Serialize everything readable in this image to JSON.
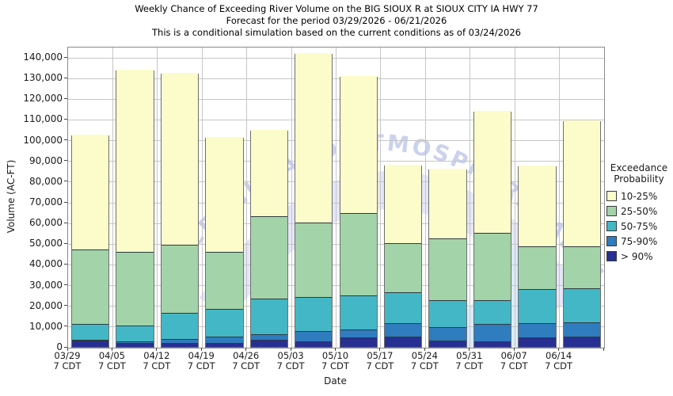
{
  "chart_data": {
    "type": "bar",
    "stacked": true,
    "title": "Weekly Chance of Exceeding River Volume on the BIG SIOUX R at SIOUX CITY IA HWY 77",
    "subtitle1": "Forecast for the period 03/29/2026 - 06/21/2026",
    "subtitle2": "This is a conditional simulation based on the current conditions as of 03/24/2026",
    "xlabel": "Date",
    "ylabel": "Volume (AC-FT)",
    "ylim": [
      0,
      145000
    ],
    "y_tick_step": 10000,
    "y_tick_labels": [
      "0",
      "10,000",
      "20,000",
      "30,000",
      "40,000",
      "50,000",
      "60,000",
      "70,000",
      "80,000",
      "90,000",
      "100,000",
      "110,000",
      "120,000",
      "130,000",
      "140,000"
    ],
    "grid": true,
    "categories": [
      "03/29",
      "04/05",
      "04/12",
      "04/19",
      "04/26",
      "05/03",
      "05/10",
      "05/17",
      "05/24",
      "05/31",
      "06/07",
      "06/14"
    ],
    "category_sub_label": "7 CDT",
    "series": [
      {
        "name": "> 90%",
        "color": "#272F93",
        "values": [
          3000,
          2000,
          2000,
          2000,
          3500,
          2500,
          4500,
          5000,
          3000,
          2500,
          4500,
          5000
        ]
      },
      {
        "name": "75-90%",
        "color": "#2F7CBE",
        "values": [
          500,
          500,
          2000,
          3000,
          2500,
          5000,
          4000,
          6500,
          6500,
          8500,
          7000,
          7000
        ]
      },
      {
        "name": "50-75%",
        "color": "#43B7C6",
        "values": [
          7500,
          8000,
          12500,
          13500,
          17500,
          16500,
          16500,
          15000,
          13000,
          11500,
          16500,
          16500
        ]
      },
      {
        "name": "25-50%",
        "color": "#A3D3A8",
        "values": [
          36000,
          35500,
          33000,
          27500,
          39500,
          36000,
          39500,
          23500,
          30000,
          32500,
          20500,
          20000
        ]
      },
      {
        "name": "10-25%",
        "color": "#FCFCCB",
        "values": [
          55500,
          88000,
          83000,
          55500,
          42000,
          82000,
          66500,
          38000,
          33500,
          59000,
          39000,
          61000
        ]
      }
    ],
    "totals": [
      102500,
      134000,
      132500,
      101500,
      105000,
      142000,
      131000,
      88000,
      86000,
      114000,
      87500,
      109500
    ],
    "legend": {
      "position": "right",
      "title_line1": "Exceedance",
      "title_line2": "Probability",
      "entries_top_to_bottom": [
        "10-25%",
        "25-50%",
        "50-75%",
        "75-90%",
        "> 90%"
      ]
    }
  },
  "watermark": {
    "text": "OCEANIC AND ATMOSPHERIC ADMINISTRA",
    "text_color": "#ccd1ee",
    "band_color": "#e2e4f6",
    "wing_color": "#d9e8fa"
  }
}
